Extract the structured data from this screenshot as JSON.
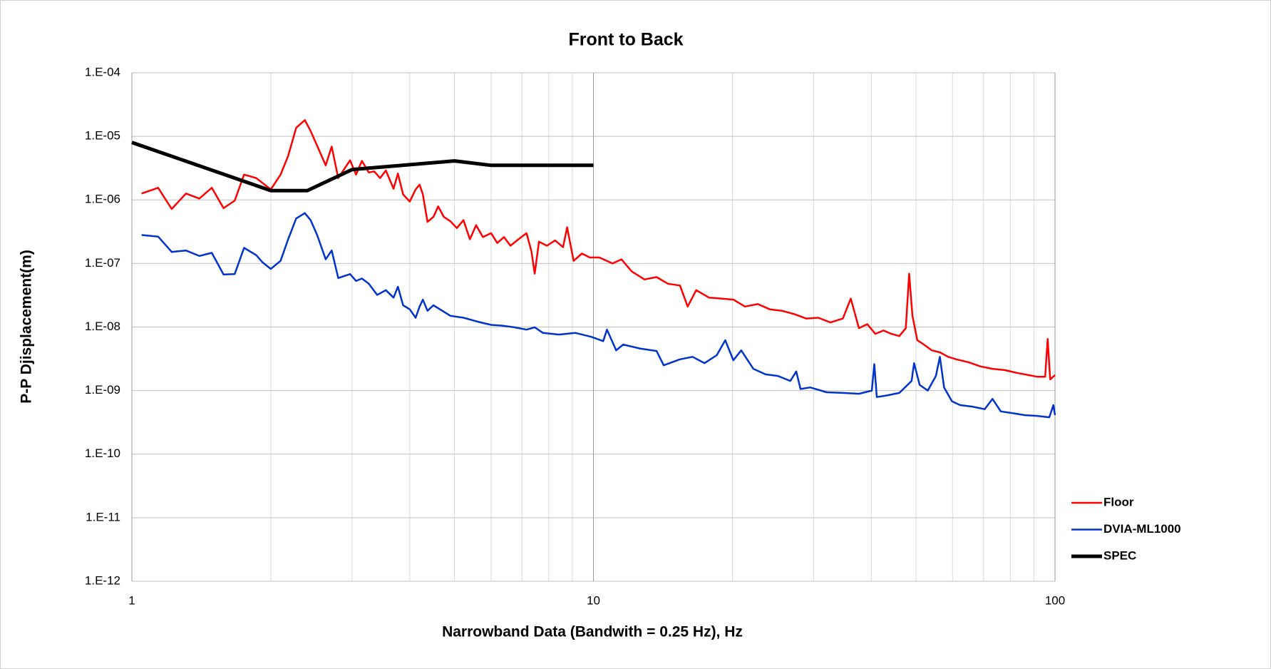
{
  "chart_data": {
    "type": "line",
    "title": "Front to Back",
    "x_label": "Narrowband Data (Bandwith = 0.25 Hz), Hz",
    "y_label": "P-P Djisplacement(m)",
    "xscale": "log",
    "yscale": "log",
    "xlim": [
      1,
      100
    ],
    "ylim": [
      1e-12,
      0.0001
    ],
    "xticks": [
      1,
      10,
      100
    ],
    "xminorticks": [
      2,
      3,
      4,
      5,
      6,
      7,
      8,
      9,
      20,
      30,
      40,
      50,
      60,
      70,
      80,
      90
    ],
    "yticks": [
      {
        "value": 1e-12,
        "label": "1.E-12"
      },
      {
        "value": 1e-11,
        "label": "1.E-11"
      },
      {
        "value": 1e-10,
        "label": "1.E-10"
      },
      {
        "value": 1e-09,
        "label": "1.E-09"
      },
      {
        "value": 1e-08,
        "label": "1.E-08"
      },
      {
        "value": 1e-07,
        "label": "1.E-07"
      },
      {
        "value": 1e-06,
        "label": "1.E-06"
      },
      {
        "value": 1e-05,
        "label": "1.E-05"
      },
      {
        "value": 0.0001,
        "label": "1.E-04"
      }
    ],
    "grid": true,
    "legend": "right",
    "series": [
      {
        "name": "Floor",
        "color": "#ff0000",
        "width": 2.5,
        "x": [
          1.05,
          1.14,
          1.22,
          1.31,
          1.4,
          1.49,
          1.58,
          1.67,
          1.75,
          1.86,
          2.0,
          2.1,
          2.18,
          2.27,
          2.37,
          2.44,
          2.52,
          2.63,
          2.71,
          2.8,
          2.97,
          3.06,
          3.15,
          3.26,
          3.35,
          3.45,
          3.55,
          3.69,
          3.77,
          3.87,
          4.0,
          4.12,
          4.2,
          4.27,
          4.37,
          4.5,
          4.61,
          4.74,
          4.9,
          5.06,
          5.23,
          5.4,
          5.57,
          5.76,
          6.0,
          6.19,
          6.4,
          6.61,
          6.88,
          7.16,
          7.34,
          7.46,
          7.62,
          7.93,
          8.26,
          8.59,
          8.77,
          9.06,
          9.44,
          9.82,
          10.3,
          11.0,
          11.5,
          12.1,
          12.9,
          13.7,
          14.5,
          15.4,
          16.0,
          16.7,
          17.8,
          18.9,
          20.1,
          21.3,
          22.7,
          24.1,
          25.6,
          27.2,
          28.9,
          30.7,
          32.6,
          34.7,
          36.1,
          37.6,
          39.2,
          40.8,
          42.5,
          44.2,
          46.0,
          47.5,
          48.3,
          49.1,
          50.3,
          52.0,
          54.1,
          56.3,
          58.7,
          61.1,
          64.9,
          68.9,
          73.2,
          77.8,
          82.7,
          87.8,
          91.5,
          95.2,
          96.4,
          97.6,
          100
        ],
        "values": [
          1.26e-06,
          1.55e-06,
          7.2e-07,
          1.26e-06,
          1.05e-06,
          1.55e-06,
          7.4e-07,
          9.7e-07,
          2.5e-06,
          2.2e-06,
          1.46e-06,
          2.5e-06,
          4.9e-06,
          1.36e-05,
          1.8e-05,
          1.21e-05,
          7.1e-06,
          3.5e-06,
          6.9e-06,
          2.2e-06,
          4.2e-06,
          2.5e-06,
          4.1e-06,
          2.7e-06,
          2.8e-06,
          2.2e-06,
          2.9e-06,
          1.5e-06,
          2.6e-06,
          1.22e-06,
          9.4e-07,
          1.46e-06,
          1.74e-06,
          1.22e-06,
          4.5e-07,
          5.4e-07,
          7.9e-07,
          5.4e-07,
          4.6e-07,
          3.6e-07,
          4.8e-07,
          2.4e-07,
          4e-07,
          2.6e-07,
          3e-07,
          2.1e-07,
          2.6e-07,
          1.9e-07,
          2.4e-07,
          3e-07,
          1.56e-07,
          6.9e-08,
          2.2e-07,
          1.9e-07,
          2.3e-07,
          1.8e-07,
          3.7e-07,
          1.1e-07,
          1.43e-07,
          1.24e-07,
          1.24e-07,
          1e-07,
          1.16e-07,
          7.5e-08,
          5.6e-08,
          6.1e-08,
          4.8e-08,
          4.5e-08,
          2.1e-08,
          3.8e-08,
          2.9e-08,
          2.8e-08,
          2.7e-08,
          2.1e-08,
          2.3e-08,
          1.9e-08,
          1.8e-08,
          1.6e-08,
          1.36e-08,
          1.4e-08,
          1.18e-08,
          1.36e-08,
          2.8e-08,
          9.6e-09,
          1.11e-08,
          7.8e-09,
          8.8e-09,
          7.8e-09,
          7.2e-09,
          9.6e-09,
          6.9e-08,
          1.5e-08,
          6.2e-09,
          5.3e-09,
          4.3e-09,
          4e-09,
          3.4e-09,
          3.1e-09,
          2.8e-09,
          2.4e-09,
          2.2e-09,
          2.1e-09,
          1.9e-09,
          1.75e-09,
          1.65e-09,
          1.65e-09,
          6.5e-09,
          1.5e-09,
          1.75e-09
        ]
      },
      {
        "name": "DVIA-ML1000",
        "color": "#0033cc",
        "width": 2.5,
        "x": [
          1.05,
          1.14,
          1.22,
          1.31,
          1.4,
          1.49,
          1.58,
          1.67,
          1.75,
          1.86,
          1.92,
          2.0,
          2.1,
          2.18,
          2.27,
          2.37,
          2.44,
          2.52,
          2.63,
          2.71,
          2.8,
          2.97,
          3.06,
          3.15,
          3.26,
          3.4,
          3.55,
          3.69,
          3.77,
          3.87,
          4.0,
          4.12,
          4.2,
          4.27,
          4.37,
          4.5,
          4.9,
          5.23,
          5.62,
          6.0,
          6.34,
          6.74,
          7.16,
          7.46,
          7.77,
          8.42,
          9.13,
          9.9,
          10.5,
          10.7,
          11.2,
          11.6,
          12.6,
          13.7,
          14.2,
          15.4,
          16.4,
          17.4,
          18.5,
          19.3,
          20.1,
          20.9,
          22.2,
          23.6,
          25.1,
          26.7,
          27.5,
          28.1,
          29.5,
          32.0,
          34.7,
          37.6,
          40.1,
          40.6,
          41.1,
          43.3,
          46.0,
          48.9,
          49.5,
          50.9,
          53.0,
          55.2,
          56.3,
          57.5,
          59.8,
          62.3,
          66.2,
          70.4,
          73.2,
          76.3,
          81.1,
          86.1,
          91.5,
          97.2,
          99.2,
          100
        ],
        "values": [
          2.8e-07,
          2.65e-07,
          1.52e-07,
          1.6e-07,
          1.31e-07,
          1.47e-07,
          6.7e-08,
          6.8e-08,
          1.76e-07,
          1.35e-07,
          1.04e-07,
          8.2e-08,
          1.1e-07,
          2.4e-07,
          5.1e-07,
          6.2e-07,
          4.8e-07,
          2.8e-07,
          1.16e-07,
          1.6e-07,
          5.9e-08,
          6.8e-08,
          5.3e-08,
          5.8e-08,
          4.8e-08,
          3.2e-08,
          3.8e-08,
          2.9e-08,
          4.3e-08,
          2.2e-08,
          1.9e-08,
          1.4e-08,
          2.1e-08,
          2.7e-08,
          1.8e-08,
          2.2e-08,
          1.5e-08,
          1.4e-08,
          1.21e-08,
          1.08e-08,
          1.05e-08,
          9.9e-09,
          9.1e-09,
          9.9e-09,
          8.1e-09,
          7.6e-09,
          8.1e-09,
          7e-09,
          6e-09,
          9.1e-09,
          4.3e-09,
          5.3e-09,
          4.6e-09,
          4.2e-09,
          2.5e-09,
          3.1e-09,
          3.4e-09,
          2.7e-09,
          3.6e-09,
          6.2e-09,
          3e-09,
          4.3e-09,
          2.2e-09,
          1.8e-09,
          1.7e-09,
          1.42e-09,
          2e-09,
          1.06e-09,
          1.12e-09,
          9.4e-10,
          9.2e-10,
          8.9e-10,
          1e-09,
          2.6e-09,
          7.9e-10,
          8.4e-10,
          9.2e-10,
          1.42e-09,
          2.7e-09,
          1.23e-09,
          1e-09,
          1.7e-09,
          3.4e-09,
          1.12e-09,
          6.8e-10,
          5.9e-10,
          5.6e-10,
          5.1e-10,
          7.4e-10,
          4.7e-10,
          4.4e-10,
          4.1e-10,
          4e-10,
          3.8e-10,
          5.9e-10,
          4.1e-10
        ]
      },
      {
        "name": "SPEC",
        "color": "#000000",
        "width": 5,
        "x": [
          1,
          2,
          2.4,
          3,
          5,
          6,
          10
        ],
        "values": [
          8e-06,
          1.4e-06,
          1.4e-06,
          3e-06,
          4.1e-06,
          3.5e-06,
          3.5e-06
        ]
      }
    ]
  }
}
